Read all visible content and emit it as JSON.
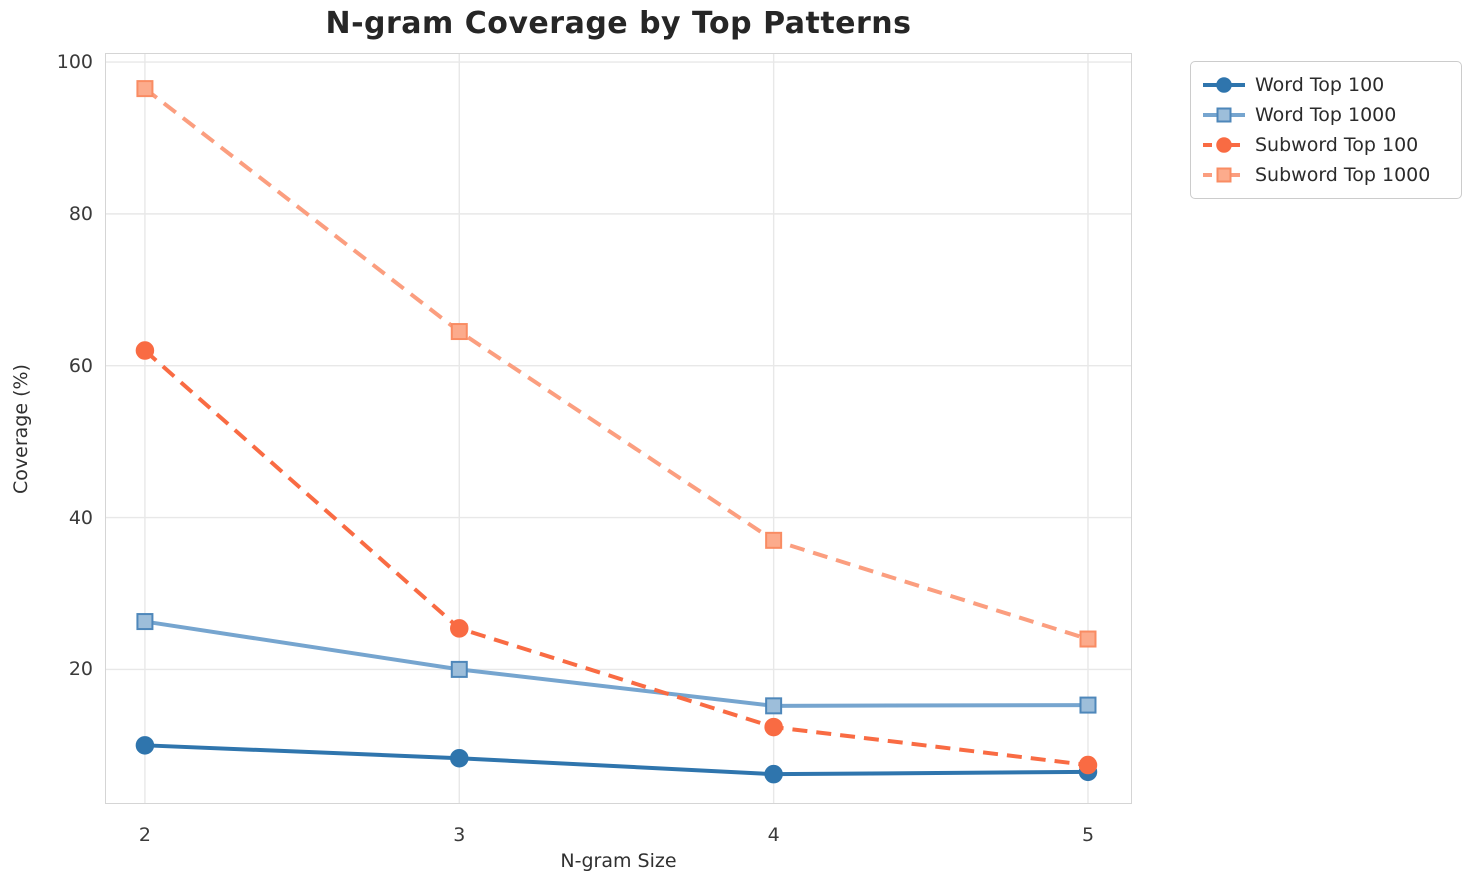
{
  "page": {
    "background": "#ffffff"
  },
  "chart_data": {
    "type": "line",
    "title": "N-gram Coverage by Top Patterns",
    "xlabel": "N-gram Size",
    "ylabel": "Coverage (%)",
    "x": [
      2,
      3,
      4,
      5
    ],
    "xtick_labels": [
      "2",
      "3",
      "4",
      "5"
    ],
    "ytick_values": [
      20,
      40,
      60,
      80,
      100
    ],
    "ytick_labels": [
      "20",
      "40",
      "60",
      "80",
      "100"
    ],
    "xlim": [
      1.873,
      5.14
    ],
    "ylim": [
      2.27,
      101.19
    ],
    "grid": true,
    "legend_position": "outside-top-right",
    "series": [
      {
        "name": "Word Top 100",
        "values": [
          10.0,
          8.3,
          6.2,
          6.5
        ],
        "color": "#2f75ad",
        "marker": "circle",
        "marker_fill": "#2f75ad",
        "marker_edge": "#2f75ad",
        "line_style": "solid"
      },
      {
        "name": "Word Top 1000",
        "values": [
          26.3,
          20.0,
          15.2,
          15.3
        ],
        "color": "#76a5cf",
        "marker": "square",
        "marker_fill": "#9dbeda",
        "marker_edge": "#4e87ba",
        "line_style": "solid"
      },
      {
        "name": "Subword Top 100",
        "values": [
          62.0,
          25.4,
          12.4,
          7.4
        ],
        "color": "#f96b43",
        "marker": "circle",
        "marker_fill": "#f96b43",
        "marker_edge": "#f96b43",
        "line_style": "dashed"
      },
      {
        "name": "Subword Top 1000",
        "values": [
          96.5,
          64.5,
          37.0,
          24.0
        ],
        "color": "#fb9e7f",
        "marker": "square",
        "marker_fill": "#fcab8c",
        "marker_edge": "#f98c63",
        "line_style": "dashed"
      }
    ],
    "style": {
      "grid_color": "#e8e8e8",
      "spine_color": "#d5d5d5",
      "line_width": 4,
      "dash_pattern": "15 9",
      "circle_radius": 8.5,
      "square_size": 15
    }
  }
}
